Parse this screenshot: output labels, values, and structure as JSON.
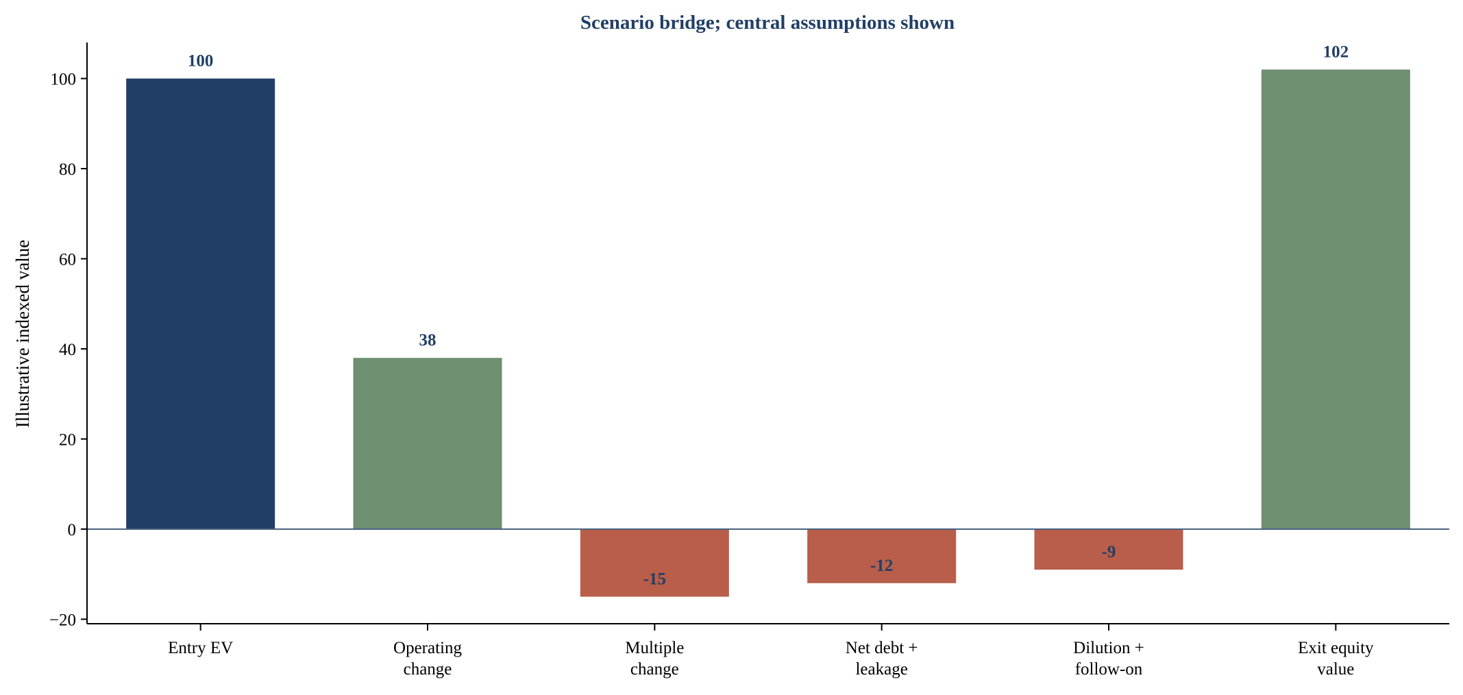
{
  "chart_data": {
    "type": "bar",
    "title": "Scenario bridge; central assumptions shown",
    "xlabel": "",
    "ylabel": "Illustrative indexed value",
    "ylim": [
      -21,
      108
    ],
    "yticks": [
      -20,
      0,
      20,
      40,
      60,
      80,
      100
    ],
    "ytick_labels": [
      "−20",
      "0",
      "20",
      "40",
      "60",
      "80",
      "100"
    ],
    "grid": false,
    "legend": "none",
    "categories": [
      [
        "Entry EV"
      ],
      [
        "Operating",
        "change"
      ],
      [
        "Multiple",
        "change"
      ],
      [
        "Net debt +",
        "leakage"
      ],
      [
        "Dilution +",
        "follow-on"
      ],
      [
        "Exit equity",
        "value"
      ]
    ],
    "values": [
      100,
      38,
      -15,
      -12,
      -9,
      102
    ],
    "data_labels": [
      "100",
      "38",
      "-15",
      "-12",
      "-9",
      "102"
    ],
    "bar_colors": [
      "#213f66",
      "#6e8f70",
      "#b85e4a",
      "#b85e4a",
      "#b85e4a",
      "#6e8f70"
    ],
    "zero_line_color": "#4a6380",
    "label_color": "#213f66"
  }
}
